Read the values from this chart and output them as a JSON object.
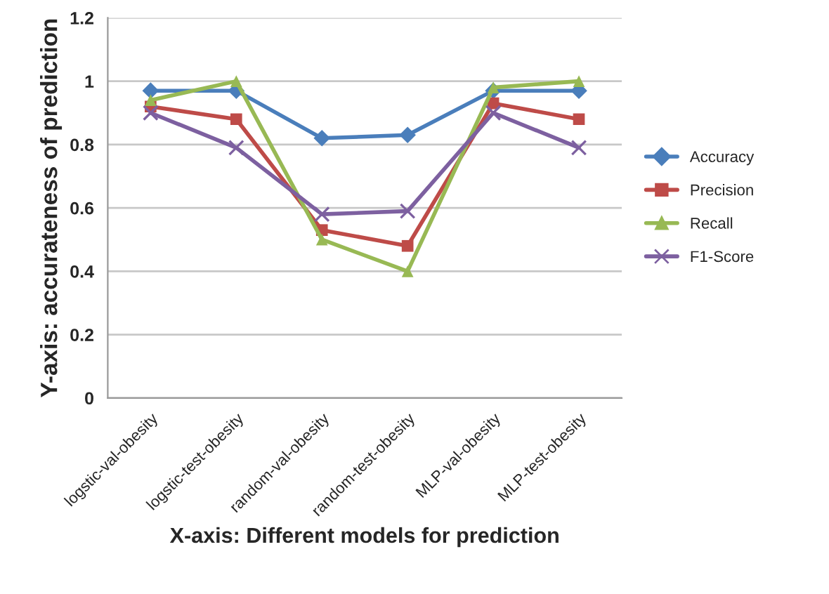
{
  "chart_data": {
    "type": "line",
    "xlabel": "X-axis: Different models for prediction",
    "ylabel": "Y-axis: accurateness of prediction",
    "categories": [
      "logstic-val-obesity",
      "logstic-test-obesity",
      "random-val-obesity",
      "random-test-obesity",
      "MLP-val-obesity",
      "MLP-test-obesity"
    ],
    "series": [
      {
        "name": "Accuracy",
        "color": "#4a7ebb",
        "marker": "diamond",
        "values": [
          0.97,
          0.97,
          0.82,
          0.83,
          0.97,
          0.97
        ]
      },
      {
        "name": "Precision",
        "color": "#be4b48",
        "marker": "square",
        "values": [
          0.92,
          0.88,
          0.53,
          0.48,
          0.93,
          0.88
        ]
      },
      {
        "name": "Recall",
        "color": "#98b954",
        "marker": "triangle",
        "values": [
          0.94,
          1.0,
          0.5,
          0.4,
          0.98,
          1.0
        ]
      },
      {
        "name": "F1-Score",
        "color": "#7d60a0",
        "marker": "cross",
        "values": [
          0.9,
          0.79,
          0.58,
          0.59,
          0.9,
          0.79
        ]
      }
    ],
    "ylim": [
      0,
      1.2
    ],
    "yticks": [
      0,
      0.2,
      0.4,
      0.6,
      0.8,
      1,
      1.2
    ],
    "grid": "y",
    "legend": "right",
    "line_style": "solid"
  }
}
